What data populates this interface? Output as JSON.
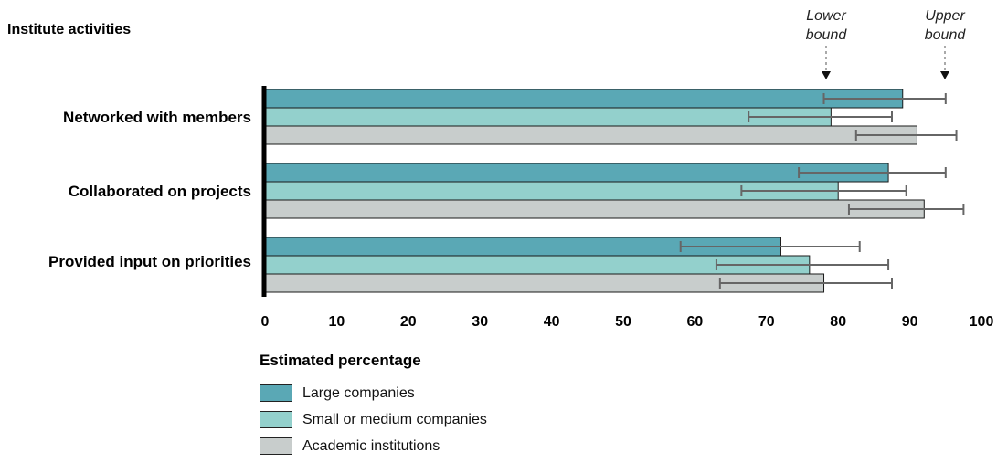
{
  "chart_data": {
    "type": "bar",
    "orientation": "horizontal",
    "y_title": "Institute activities",
    "xlabel": "Estimated percentage",
    "xlim": [
      0,
      100
    ],
    "xticks": [
      "0",
      "10",
      "20",
      "30",
      "40",
      "50",
      "60",
      "70",
      "80",
      "90",
      "100"
    ],
    "categories": [
      "Networked with members",
      "Collaborated on projects",
      "Provided input on priorities"
    ],
    "series": [
      {
        "name": "Large companies",
        "color": "#5aa8b5",
        "values": [
          89,
          87,
          72
        ],
        "lower": [
          78,
          74.5,
          58
        ],
        "upper": [
          95,
          95,
          83
        ]
      },
      {
        "name": "Small or medium companies",
        "color": "#93d0cc",
        "values": [
          79,
          80,
          76
        ],
        "lower": [
          67.5,
          66.5,
          63
        ],
        "upper": [
          87.5,
          89.5,
          87
        ]
      },
      {
        "name": "Academic institutions",
        "color": "#c8cdcc",
        "values": [
          91,
          92,
          78
        ],
        "lower": [
          82.5,
          81.5,
          63.5
        ],
        "upper": [
          96.5,
          97.5,
          87.5
        ]
      }
    ],
    "annotations": {
      "lower_bound": "Lower bound",
      "upper_bound": "Upper bound"
    }
  }
}
